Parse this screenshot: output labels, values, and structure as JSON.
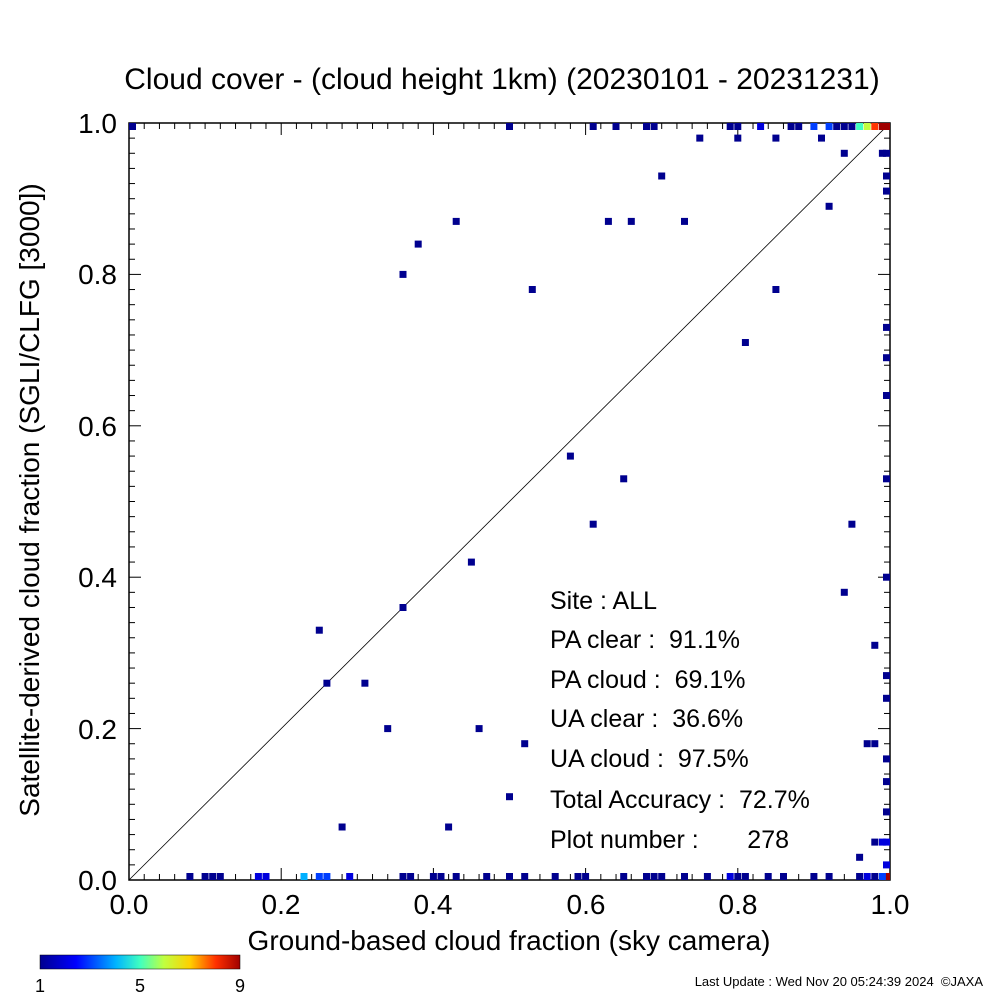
{
  "chart_data": {
    "type": "scatter",
    "title": "Cloud cover - (cloud height 1km)  (20230101 - 20231231)",
    "xlabel": "Ground-based cloud fraction (sky camera)",
    "ylabel": "Satellite-derived cloud fraction (SGLI/CLFG [3000])",
    "xlim": [
      0,
      1
    ],
    "ylim": [
      0,
      1
    ],
    "x_ticks": [
      "0.0",
      "0.2",
      "0.4",
      "0.6",
      "0.8",
      "1.0"
    ],
    "y_ticks": [
      "0.0",
      "0.2",
      "0.4",
      "0.6",
      "0.8",
      "1.0"
    ],
    "grid": false,
    "diagonal_line": true,
    "stats": [
      "Site : ALL",
      "PA clear :  91.1%",
      "PA cloud :  69.1%",
      "UA clear :  36.6%",
      "UA cloud :  97.5%",
      "Total Accuracy :  72.7%",
      "Plot number :       278"
    ],
    "colorbar": {
      "ticks": [
        "1",
        "5",
        "9"
      ],
      "min": 1,
      "max": 9
    },
    "points": [
      {
        "x": 0.36,
        "y": 0.8,
        "count": 1
      },
      {
        "x": 0.38,
        "y": 0.84,
        "count": 1
      },
      {
        "x": 0.43,
        "y": 0.87,
        "count": 1
      },
      {
        "x": 0.53,
        "y": 0.78,
        "count": 1
      },
      {
        "x": 0.63,
        "y": 0.87,
        "count": 1
      },
      {
        "x": 0.66,
        "y": 0.87,
        "count": 1
      },
      {
        "x": 0.7,
        "y": 0.93,
        "count": 1
      },
      {
        "x": 0.73,
        "y": 0.87,
        "count": 1
      },
      {
        "x": 0.75,
        "y": 0.98,
        "count": 1
      },
      {
        "x": 0.8,
        "y": 0.98,
        "count": 1
      },
      {
        "x": 0.85,
        "y": 0.98,
        "count": 1
      },
      {
        "x": 0.91,
        "y": 0.98,
        "count": 1
      },
      {
        "x": 0.94,
        "y": 0.96,
        "count": 1
      },
      {
        "x": 0.92,
        "y": 0.89,
        "count": 1
      },
      {
        "x": 0.85,
        "y": 0.78,
        "count": 1
      },
      {
        "x": 0.81,
        "y": 0.71,
        "count": 1
      },
      {
        "x": 0.58,
        "y": 0.56,
        "count": 1
      },
      {
        "x": 0.65,
        "y": 0.53,
        "count": 1
      },
      {
        "x": 0.61,
        "y": 0.47,
        "count": 1
      },
      {
        "x": 0.45,
        "y": 0.42,
        "count": 1
      },
      {
        "x": 0.36,
        "y": 0.36,
        "count": 1
      },
      {
        "x": 0.25,
        "y": 0.33,
        "count": 1
      },
      {
        "x": 0.26,
        "y": 0.26,
        "count": 1
      },
      {
        "x": 0.31,
        "y": 0.26,
        "count": 1
      },
      {
        "x": 0.34,
        "y": 0.2,
        "count": 1
      },
      {
        "x": 0.46,
        "y": 0.2,
        "count": 1
      },
      {
        "x": 0.52,
        "y": 0.18,
        "count": 1
      },
      {
        "x": 0.5,
        "y": 0.11,
        "count": 1
      },
      {
        "x": 0.28,
        "y": 0.07,
        "count": 1
      },
      {
        "x": 0.42,
        "y": 0.07,
        "count": 1
      },
      {
        "x": 0.95,
        "y": 0.47,
        "count": 1
      },
      {
        "x": 0.94,
        "y": 0.38,
        "count": 1
      },
      {
        "x": 0.98,
        "y": 0.31,
        "count": 1
      },
      {
        "x": 0.97,
        "y": 0.18,
        "count": 1
      },
      {
        "x": 0.98,
        "y": 0.18,
        "count": 1
      },
      {
        "x": 0.98,
        "y": 0.05,
        "count": 1
      },
      {
        "x": 0.96,
        "y": 0.03,
        "count": 1
      },
      {
        "x": 0.99,
        "y": 0.96,
        "count": 1
      },
      {
        "x": 1.0,
        "y": 0.96,
        "count": 1
      },
      {
        "x": 1.0,
        "y": 0.93,
        "count": 1
      },
      {
        "x": 1.0,
        "y": 0.91,
        "count": 1
      },
      {
        "x": 1.0,
        "y": 0.73,
        "count": 1
      },
      {
        "x": 1.0,
        "y": 0.69,
        "count": 1
      },
      {
        "x": 1.0,
        "y": 0.64,
        "count": 1
      },
      {
        "x": 1.0,
        "y": 0.53,
        "count": 1
      },
      {
        "x": 1.0,
        "y": 0.4,
        "count": 1
      },
      {
        "x": 1.0,
        "y": 0.27,
        "count": 1
      },
      {
        "x": 1.0,
        "y": 0.24,
        "count": 1
      },
      {
        "x": 1.0,
        "y": 0.16,
        "count": 1
      },
      {
        "x": 1.0,
        "y": 0.13,
        "count": 1
      },
      {
        "x": 1.0,
        "y": 0.09,
        "count": 1
      },
      {
        "x": 1.0,
        "y": 0.05,
        "count": 2
      },
      {
        "x": 0.99,
        "y": 0.05,
        "count": 2
      },
      {
        "x": 1.0,
        "y": 0.02,
        "count": 2
      },
      {
        "x": 1.0,
        "y": 0.0,
        "count": 9
      },
      {
        "x": 0.0,
        "y": 1.0,
        "count": 1
      },
      {
        "x": 0.5,
        "y": 1.0,
        "count": 1
      },
      {
        "x": 0.61,
        "y": 1.0,
        "count": 1
      },
      {
        "x": 0.64,
        "y": 1.0,
        "count": 1
      },
      {
        "x": 0.68,
        "y": 1.0,
        "count": 1
      },
      {
        "x": 0.69,
        "y": 1.0,
        "count": 1
      },
      {
        "x": 0.79,
        "y": 1.0,
        "count": 1
      },
      {
        "x": 0.8,
        "y": 1.0,
        "count": 1
      },
      {
        "x": 0.83,
        "y": 1.0,
        "count": 2
      },
      {
        "x": 0.87,
        "y": 1.0,
        "count": 1
      },
      {
        "x": 0.88,
        "y": 1.0,
        "count": 1
      },
      {
        "x": 0.9,
        "y": 1.0,
        "count": 3
      },
      {
        "x": 0.92,
        "y": 1.0,
        "count": 3
      },
      {
        "x": 0.93,
        "y": 1.0,
        "count": 1
      },
      {
        "x": 0.94,
        "y": 1.0,
        "count": 1
      },
      {
        "x": 0.95,
        "y": 1.0,
        "count": 1
      },
      {
        "x": 0.96,
        "y": 1.0,
        "count": 5
      },
      {
        "x": 0.97,
        "y": 1.0,
        "count": 6
      },
      {
        "x": 0.98,
        "y": 1.0,
        "count": 8
      },
      {
        "x": 0.99,
        "y": 1.0,
        "count": 9
      },
      {
        "x": 1.0,
        "y": 1.0,
        "count": 9
      },
      {
        "x": 0.08,
        "y": 0.0,
        "count": 1
      },
      {
        "x": 0.1,
        "y": 0.0,
        "count": 1
      },
      {
        "x": 0.11,
        "y": 0.0,
        "count": 1
      },
      {
        "x": 0.12,
        "y": 0.0,
        "count": 1
      },
      {
        "x": 0.17,
        "y": 0.0,
        "count": 2
      },
      {
        "x": 0.18,
        "y": 0.0,
        "count": 2
      },
      {
        "x": 0.23,
        "y": 0.0,
        "count": 4
      },
      {
        "x": 0.25,
        "y": 0.0,
        "count": 3
      },
      {
        "x": 0.26,
        "y": 0.0,
        "count": 3
      },
      {
        "x": 0.29,
        "y": 0.0,
        "count": 2
      },
      {
        "x": 0.36,
        "y": 0.0,
        "count": 1
      },
      {
        "x": 0.37,
        "y": 0.0,
        "count": 1
      },
      {
        "x": 0.4,
        "y": 0.0,
        "count": 1
      },
      {
        "x": 0.41,
        "y": 0.0,
        "count": 1
      },
      {
        "x": 0.43,
        "y": 0.0,
        "count": 1
      },
      {
        "x": 0.47,
        "y": 0.0,
        "count": 1
      },
      {
        "x": 0.5,
        "y": 0.0,
        "count": 1
      },
      {
        "x": 0.52,
        "y": 0.0,
        "count": 1
      },
      {
        "x": 0.56,
        "y": 0.0,
        "count": 1
      },
      {
        "x": 0.59,
        "y": 0.0,
        "count": 1
      },
      {
        "x": 0.6,
        "y": 0.0,
        "count": 1
      },
      {
        "x": 0.65,
        "y": 0.0,
        "count": 1
      },
      {
        "x": 0.68,
        "y": 0.0,
        "count": 1
      },
      {
        "x": 0.69,
        "y": 0.0,
        "count": 1
      },
      {
        "x": 0.7,
        "y": 0.0,
        "count": 1
      },
      {
        "x": 0.73,
        "y": 0.0,
        "count": 1
      },
      {
        "x": 0.76,
        "y": 0.0,
        "count": 1
      },
      {
        "x": 0.79,
        "y": 0.0,
        "count": 2
      },
      {
        "x": 0.8,
        "y": 0.0,
        "count": 1
      },
      {
        "x": 0.81,
        "y": 0.0,
        "count": 1
      },
      {
        "x": 0.84,
        "y": 0.0,
        "count": 1
      },
      {
        "x": 0.86,
        "y": 0.0,
        "count": 1
      },
      {
        "x": 0.9,
        "y": 0.0,
        "count": 1
      },
      {
        "x": 0.92,
        "y": 0.0,
        "count": 1
      },
      {
        "x": 0.96,
        "y": 0.0,
        "count": 1
      },
      {
        "x": 0.97,
        "y": 0.0,
        "count": 2
      },
      {
        "x": 0.98,
        "y": 0.0,
        "count": 1
      },
      {
        "x": 0.99,
        "y": 0.0,
        "count": 3
      }
    ]
  },
  "footer": {
    "last_update": "Last Update : Wed Nov 20 05:24:39 2024  ©JAXA"
  }
}
